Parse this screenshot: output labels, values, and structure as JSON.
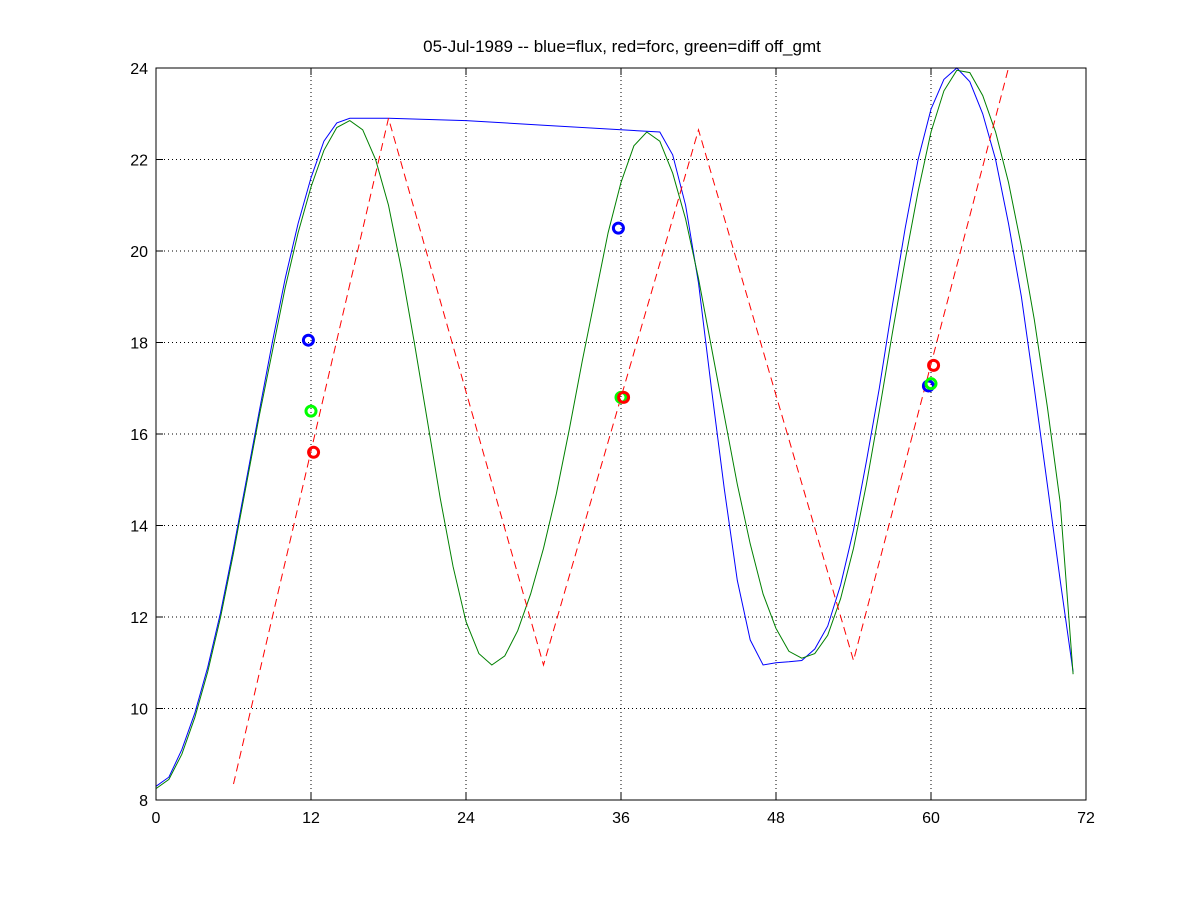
{
  "chart_data": {
    "type": "line",
    "title": "05-Jul-1989 -- blue=flux, red=forc, green=diff off_gmt",
    "xlabel": "",
    "ylabel": "",
    "xlim": [
      0,
      72
    ],
    "ylim": [
      8,
      24
    ],
    "x_ticks": [
      0,
      12,
      24,
      36,
      48,
      60,
      72
    ],
    "y_ticks": [
      8,
      10,
      12,
      14,
      16,
      18,
      20,
      22,
      24
    ],
    "grid": true,
    "colors": {
      "flux": "#0000ff",
      "forc": "#ff0000",
      "diff": "#008000",
      "diff_marker": "#00ff00"
    },
    "series": [
      {
        "key": "flux",
        "style": "solid",
        "x": [
          0,
          1,
          2,
          3,
          4,
          5,
          6,
          7,
          8,
          9,
          10,
          11,
          12,
          13,
          14,
          15,
          18,
          24,
          30,
          36,
          39,
          40,
          41,
          42,
          43,
          44,
          45,
          46,
          47,
          48,
          49,
          50,
          51,
          52,
          53,
          54,
          55,
          56,
          57,
          58,
          59,
          60,
          61,
          62,
          63,
          64,
          65,
          66,
          67,
          68,
          69,
          70,
          71
        ],
        "y": [
          8.3,
          8.5,
          9.1,
          9.9,
          10.9,
          12.1,
          13.5,
          15.0,
          16.5,
          18.0,
          19.4,
          20.6,
          21.6,
          22.4,
          22.8,
          22.9,
          22.9,
          22.85,
          22.75,
          22.65,
          22.6,
          22.1,
          21.0,
          19.3,
          17.0,
          14.8,
          12.8,
          11.5,
          10.95,
          11.0,
          11.02,
          11.05,
          11.3,
          11.8,
          12.7,
          13.9,
          15.4,
          17.0,
          18.8,
          20.5,
          22.0,
          23.1,
          23.75,
          24.0,
          23.7,
          23.0,
          22.0,
          20.6,
          19.0,
          17.0,
          14.9,
          12.8,
          10.8
        ]
      },
      {
        "key": "diff",
        "style": "solid",
        "x": [
          0,
          1,
          2,
          3,
          4,
          5,
          6,
          7,
          8,
          9,
          10,
          11,
          12,
          13,
          14,
          15,
          16,
          17,
          18,
          19,
          20,
          21,
          22,
          23,
          24,
          25,
          26,
          27,
          28,
          29,
          30,
          31,
          32,
          33,
          34,
          35,
          36,
          37,
          38,
          39,
          40,
          41,
          42,
          43,
          44,
          45,
          46,
          47,
          48,
          49,
          50,
          51,
          52,
          53,
          54,
          55,
          56,
          57,
          58,
          59,
          60,
          61,
          62,
          63,
          64,
          65,
          66,
          67,
          68,
          69,
          70,
          71
        ],
        "y": [
          8.25,
          8.45,
          9.0,
          9.8,
          10.8,
          12.0,
          13.4,
          14.9,
          16.4,
          17.8,
          19.2,
          20.4,
          21.4,
          22.2,
          22.7,
          22.85,
          22.65,
          22.0,
          21.0,
          19.6,
          18.0,
          16.3,
          14.6,
          13.1,
          11.9,
          11.2,
          10.95,
          11.15,
          11.7,
          12.5,
          13.5,
          14.7,
          16.1,
          17.6,
          19.0,
          20.4,
          21.5,
          22.3,
          22.6,
          22.4,
          21.7,
          20.7,
          19.4,
          17.9,
          16.4,
          14.9,
          13.6,
          12.5,
          11.75,
          11.25,
          11.1,
          11.2,
          11.6,
          12.4,
          13.5,
          14.9,
          16.5,
          18.2,
          19.8,
          21.3,
          22.6,
          23.5,
          23.95,
          23.9,
          23.4,
          22.6,
          21.5,
          20.1,
          18.5,
          16.6,
          14.5,
          12.4
        ],
        "y_last": 10.75
      },
      {
        "key": "forc",
        "style": "dashed",
        "x": [
          6,
          18,
          30,
          42,
          54,
          66
        ],
        "y": [
          8.35,
          22.9,
          10.95,
          22.65,
          11.05,
          24.0
        ]
      }
    ],
    "markers": [
      {
        "key": "flux",
        "x": 11.8,
        "y": 18.05
      },
      {
        "key": "diff",
        "x": 12.0,
        "y": 16.5
      },
      {
        "key": "forc",
        "x": 12.2,
        "y": 15.6
      },
      {
        "key": "flux",
        "x": 35.8,
        "y": 20.5
      },
      {
        "key": "diff",
        "x": 36.0,
        "y": 16.8
      },
      {
        "key": "forc",
        "x": 36.2,
        "y": 16.8
      },
      {
        "key": "flux",
        "x": 59.8,
        "y": 17.05
      },
      {
        "key": "diff",
        "x": 60.0,
        "y": 17.1
      },
      {
        "key": "forc",
        "x": 60.2,
        "y": 17.5
      }
    ]
  }
}
